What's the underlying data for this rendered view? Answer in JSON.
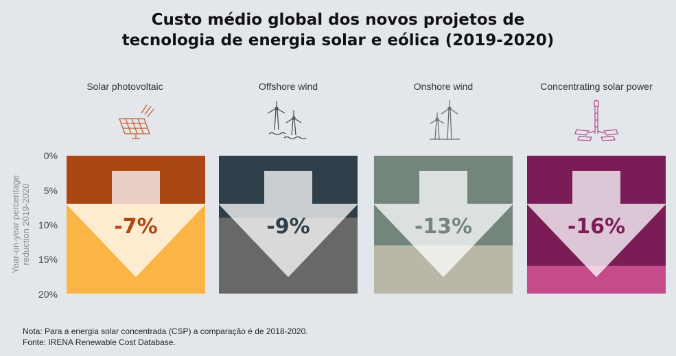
{
  "title": {
    "line1": "Custo médio global dos novos projetos de",
    "line2": "tecnologia de energia solar e eólica (2019-2020)"
  },
  "y_axis": {
    "label_line1": "Year-on-year percentage",
    "label_line2": "reduction 2019-2020",
    "ticks": [
      "0%",
      "5%",
      "10%",
      "15%",
      "20%"
    ]
  },
  "chart_data": {
    "type": "bar",
    "categories": [
      "Solar photovoltaic",
      "Offshore wind",
      "Onshore wind",
      "Concentrating solar power"
    ],
    "values": [
      -7,
      -9,
      -13,
      -16
    ],
    "value_labels": [
      "-7%",
      "-9%",
      "-13%",
      "-16%"
    ],
    "ylabel": "Year-on-year percentage reduction 2019-2020",
    "ylim": [
      0,
      20
    ],
    "colors": {
      "bar": [
        "#ad4615",
        "#2f3f4a",
        "#74857c",
        "#7a1d57"
      ],
      "background": [
        "#fbb446",
        "#686868",
        "#b8b7a8",
        "#c54b8b"
      ],
      "label_text": [
        "#ad4615",
        "#2f3f4a",
        "#74857c",
        "#7a1d57"
      ]
    },
    "icons": [
      "solar-panel-icon",
      "offshore-wind-icon",
      "onshore-wind-icon",
      "csp-tower-icon"
    ]
  },
  "notes": {
    "note": "Nota: Para a energia solar concentrada (CSP) a comparação é de 2018-2020.",
    "source": "Fonte: IRENA Renewable Cost Database."
  }
}
